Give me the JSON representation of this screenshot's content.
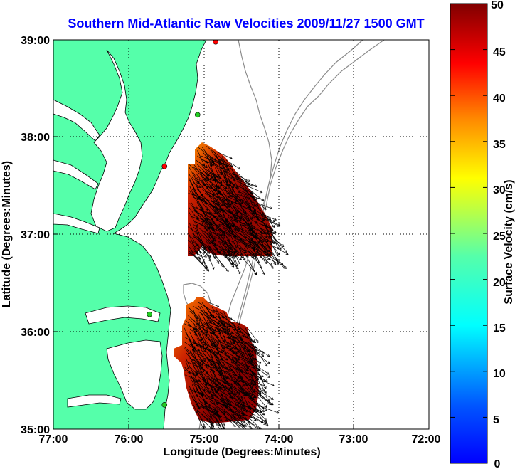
{
  "title": "Southern Mid-Atlantic Raw Velocities 2009/11/27 1500 GMT",
  "x_axis": {
    "label": "Longitude (Degrees:Minutes)",
    "ticks": [
      "77:00",
      "76:00",
      "75:00",
      "74:00",
      "73:00",
      "72:00"
    ]
  },
  "y_axis": {
    "label": "Latitude (Degrees:Minutes)",
    "ticks": [
      "39:00",
      "38:00",
      "37:00",
      "36:00",
      "35:00"
    ]
  },
  "colorbar": {
    "label": "Surface Velocity (cm/s)",
    "ticks": [
      "50",
      "45",
      "40",
      "35",
      "30",
      "25",
      "20",
      "15",
      "10",
      "5",
      "0"
    ],
    "range": [
      0,
      50
    ],
    "colormap": "jet"
  },
  "map": {
    "lon_range": [
      -77,
      -72
    ],
    "lat_range": [
      35,
      39
    ],
    "land_color": "#55ffaa",
    "water_color": "#ffffff",
    "grid": "dotted",
    "regions": [
      {
        "name": "northern velocity field",
        "lon": [
          -75.2,
          -73.75
        ],
        "lat": [
          36.7,
          37.9
        ],
        "dominant_flow": "southeast"
      },
      {
        "name": "southern velocity field",
        "lon": [
          -75.25,
          -73.95
        ],
        "lat": [
          35.05,
          36.3
        ],
        "dominant_flow": "southeast"
      }
    ],
    "stations": [
      {
        "lon": -74.84,
        "lat": 38.98,
        "color": "#ff0000"
      },
      {
        "lon": -75.08,
        "lat": 38.23,
        "color": "#22cc22"
      },
      {
        "lon": -75.52,
        "lat": 37.7,
        "color": "#ff0000"
      },
      {
        "lon": -75.72,
        "lat": 36.18,
        "color": "#22cc22"
      },
      {
        "lon": -75.52,
        "lat": 35.25,
        "color": "#22cc22"
      }
    ]
  }
}
